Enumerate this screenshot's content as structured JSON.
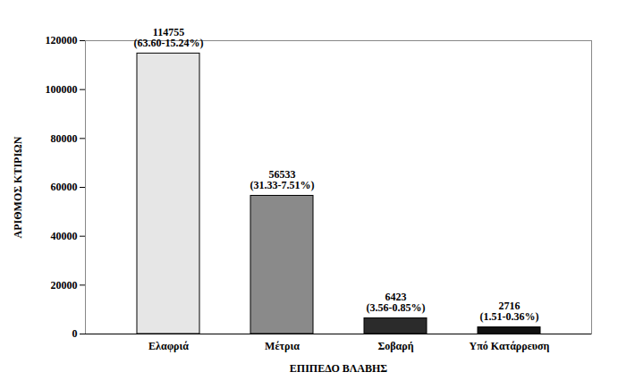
{
  "chart_data": {
    "type": "bar",
    "x_label": "ΕΠΙΠΕΔΟ ΒΛΑΒΗΣ",
    "y_label": "ΑΡΙΘΜΟΣ ΚΤΙΡΙΩΝ",
    "categories": [
      "Ελαφριά",
      "Μέτρια",
      "Σοβαρή",
      "Υπό Κατάρρευση"
    ],
    "values": [
      114755,
      56533,
      6423,
      2716
    ],
    "value_labels": [
      "114755\n(63.60-15.24%)",
      "56533\n(31.33-7.51%)",
      "6423\n(3.56-0.85%)",
      "2716\n(1.51-0.36%)"
    ],
    "colors": [
      "#e6e6e6",
      "#8a8a8a",
      "#2b2b2b",
      "#111111"
    ],
    "ylim": [
      0,
      120000
    ],
    "yticks": [
      0,
      20000,
      40000,
      60000,
      80000,
      100000,
      120000
    ],
    "grid": false,
    "data_labels": true
  }
}
